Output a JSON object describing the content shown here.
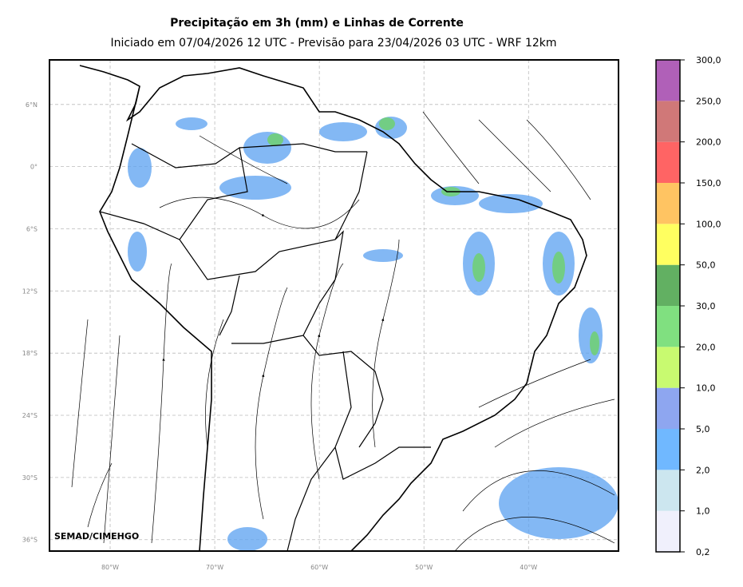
{
  "title": "Precipitação em 3h (mm) e Linhas de Corrente",
  "subtitle": "Iniciado em 07/04/2026 12 UTC - Previsão para 23/04/2026 03 UTC - WRF 12km",
  "map": {
    "xlim": [
      -85.8,
      -31.4
    ],
    "ylim": [
      -37.1,
      10.3
    ],
    "xticks": [
      {
        "value": -80,
        "label": "80°W"
      },
      {
        "value": -70,
        "label": "70°W"
      },
      {
        "value": -60,
        "label": "60°W"
      },
      {
        "value": -50,
        "label": "50°W"
      },
      {
        "value": -40,
        "label": "40°W"
      }
    ],
    "yticks": [
      {
        "value": 6,
        "label": "6°N"
      },
      {
        "value": 0,
        "label": "0°"
      },
      {
        "value": -6,
        "label": "6°S"
      },
      {
        "value": -12,
        "label": "12°S"
      },
      {
        "value": -18,
        "label": "18°S"
      },
      {
        "value": -24,
        "label": "24°S"
      },
      {
        "value": -30,
        "label": "30°S"
      },
      {
        "value": -36,
        "label": "36°S"
      }
    ],
    "grid": true,
    "credit": "SEMAD/CIMEHGO"
  },
  "colorbar": {
    "levels": [
      {
        "value": 0.2,
        "label": "0,2"
      },
      {
        "value": 1,
        "label": "1,0"
      },
      {
        "value": 2,
        "label": "2,0"
      },
      {
        "value": 5,
        "label": "5,0"
      },
      {
        "value": 10,
        "label": "10,0"
      },
      {
        "value": 20,
        "label": "20,0"
      },
      {
        "value": 30,
        "label": "30,0"
      },
      {
        "value": 50,
        "label": "50,0"
      },
      {
        "value": 100,
        "label": "100,0"
      },
      {
        "value": 150,
        "label": "150,0"
      },
      {
        "value": 200,
        "label": "200,0"
      },
      {
        "value": 250,
        "label": "250,0"
      },
      {
        "value": 300,
        "label": "300,0"
      }
    ],
    "colors": [
      "#f0f0fc",
      "#cce6ef",
      "#70b8ff",
      "#8ea6f0",
      "#c8fa70",
      "#80e080",
      "#62b062",
      "#ffff60",
      "#ffc462",
      "#ff6464",
      "#d07878",
      "#b060b8"
    ]
  }
}
